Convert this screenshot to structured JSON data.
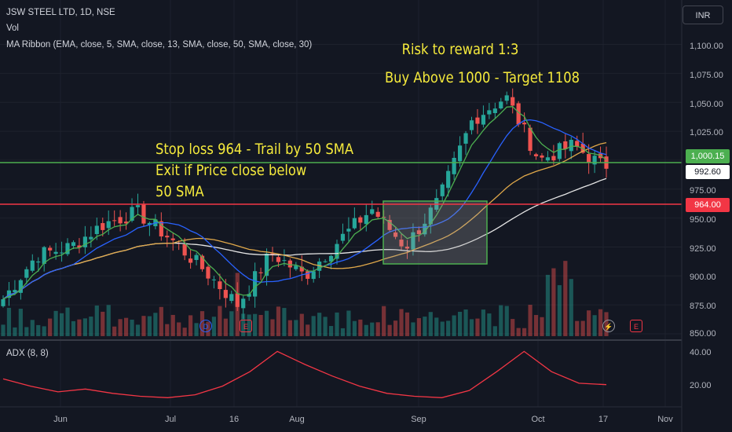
{
  "header": {
    "symbol": "JSW STEEL LTD, 1D, NSE",
    "volume_label": "Vol",
    "ma_label": "MA Ribbon (EMA, close, 5, SMA, close, 13, SMA, close, 50, SMA, close, 30)"
  },
  "annotations": {
    "risk_reward": "Risk to reward 1:3",
    "buy_target": "Buy Above 1000 - Target 1108",
    "stop_loss_1": "Stop loss 964 - Trail by 50 SMA",
    "stop_loss_2": "Exit if Price close below",
    "stop_loss_3": "50 SMA"
  },
  "currency": "INR",
  "price_tags": {
    "green_level": "1,000.15",
    "last_price": "992.60",
    "red_level": "964.00"
  },
  "events": {
    "dividend": "D",
    "earnings": "E",
    "split": "⚡"
  },
  "colors": {
    "up": "#26a69a",
    "down": "#ef5350",
    "annotation": "#f5ea3c",
    "level_green": "#4caf50",
    "level_red": "#f23645",
    "ema5": "#4caf50",
    "sma13": "#2962ff",
    "sma30": "#e0a84a",
    "sma50": "#e6e6e6",
    "adx": "#f23645"
  },
  "chart_data": [
    {
      "type": "candlestick",
      "title": "JSW STEEL LTD, 1D, NSE",
      "x_ticks": [
        "Jun",
        "Jul",
        "16",
        "Aug",
        "Sep",
        "Oct",
        "17",
        "Nov"
      ],
      "y_ticks": [
        "850.00",
        "875.00",
        "900.00",
        "925.00",
        "950.00",
        "975.00",
        "1,000.00",
        "1,025.00",
        "1,050.00",
        "1,075.00",
        "1,100.00"
      ],
      "ylim": [
        850,
        1118
      ],
      "horizontal_levels": [
        {
          "value": 1000.15,
          "label": "1,000.15",
          "color": "green"
        },
        {
          "value": 964.0,
          "label": "964.00",
          "color": "red"
        }
      ],
      "consolidation_box": {
        "from": "late Aug",
        "to": "late Sep",
        "low": 915,
        "high": 968
      },
      "trend_points": [
        {
          "date": "late May",
          "close": 880
        },
        {
          "date": "early Jun",
          "close": 918
        },
        {
          "date": "mid Jun",
          "close": 925
        },
        {
          "date": "late Jun",
          "close": 945
        },
        {
          "date": "early Jul",
          "close": 955
        },
        {
          "date": "mid Jul",
          "close": 932
        },
        {
          "date": "19 Jul",
          "close": 905
        },
        {
          "date": "25 Jul",
          "close": 875
        },
        {
          "date": "early Aug",
          "close": 920
        },
        {
          "date": "mid Aug",
          "close": 900
        },
        {
          "date": "late Aug",
          "close": 930
        },
        {
          "date": "end Aug",
          "close": 958
        },
        {
          "date": "mid Sep",
          "close": 925
        },
        {
          "date": "late Sep",
          "close": 965
        },
        {
          "date": "early Oct",
          "close": 1035
        },
        {
          "date": "3 Oct",
          "close": 1055
        },
        {
          "date": "10 Oct",
          "close": 1000
        },
        {
          "date": "14 Oct",
          "close": 1013
        },
        {
          "date": "18 Oct",
          "close": 992.6
        }
      ],
      "last_close": 992.6
    },
    {
      "type": "line",
      "title": "ADX (8, 8)",
      "y_ticks": [
        "20.00",
        "40.00"
      ],
      "ylim": [
        10,
        48
      ],
      "series": [
        {
          "name": "ADX (8, 8)",
          "values": [
            25,
            20,
            16,
            18,
            15,
            13,
            12,
            14,
            20,
            30,
            44,
            35,
            27,
            20,
            15,
            13,
            12,
            17,
            30,
            44,
            30,
            22,
            21
          ]
        }
      ]
    }
  ]
}
